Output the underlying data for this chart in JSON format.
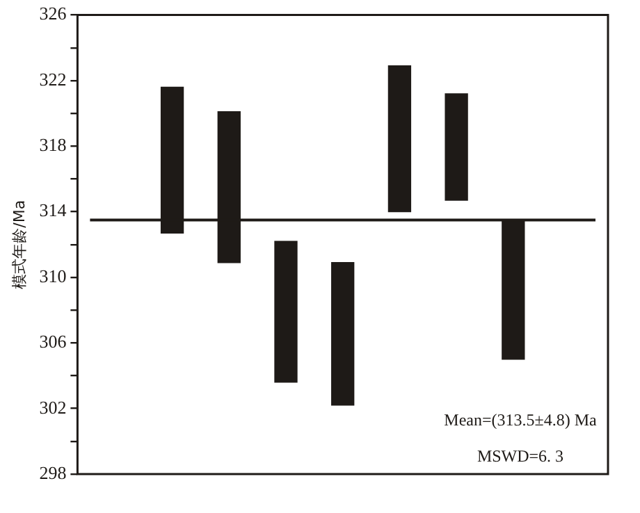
{
  "chart_data": {
    "type": "bar",
    "ylabel": "模式年龄/Ma",
    "categories": [
      null,
      null,
      null,
      null,
      null,
      null,
      null
    ],
    "base": [
      312.7,
      310.9,
      303.6,
      302.2,
      314.0,
      314.7,
      305.0
    ],
    "values": [
      8.9,
      9.2,
      8.6,
      8.7,
      8.9,
      6.5,
      8.5
    ],
    "color": "#1e1a17",
    "ylim": [
      298,
      326
    ],
    "yticks": [
      298,
      {
        "value": 300,
        "label": null
      },
      302,
      {
        "value": 304,
        "label": null
      },
      306,
      {
        "value": 308,
        "label": null
      },
      310,
      {
        "value": 312,
        "label": null
      },
      314,
      {
        "value": 316,
        "label": null
      },
      318,
      {
        "value": 320,
        "label": null
      },
      322,
      {
        "value": 324,
        "label": null
      },
      326
    ],
    "ref_lines": [
      {
        "axis": "y",
        "value": 313.5,
        "color": "#1e1a17"
      }
    ],
    "annotations": [
      "Mean=(313.5±4.8) Ma",
      "MSWD=6. 3"
    ],
    "grid": false,
    "legend": false,
    "tick_labels": "y"
  }
}
